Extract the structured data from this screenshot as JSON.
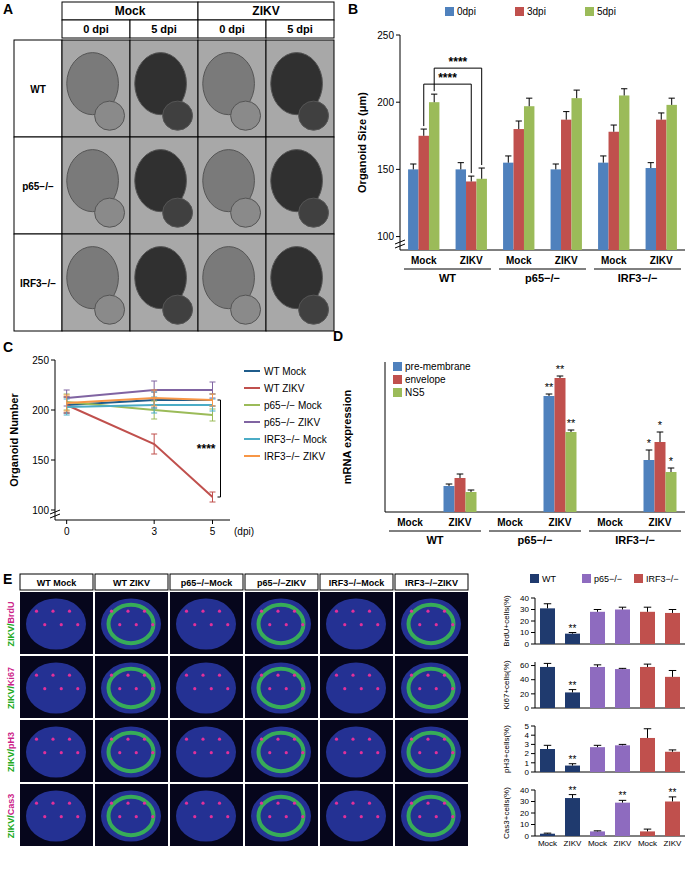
{
  "image_panels": [
    {
      "panel": "A",
      "column_groups": [
        "Mock",
        "ZIKV"
      ],
      "columns": [
        "0 dpi",
        "5 dpi",
        "0 dpi",
        "5 dpi"
      ],
      "rows": [
        "WT",
        "p65−/−",
        "IRF3−/−"
      ]
    },
    {
      "panel": "E",
      "columns": [
        "WT Mock",
        "WT ZIKV",
        "p65−/−Mock",
        "p65−/−ZIKV",
        "IRF3−/−Mock",
        "IRF3−/−ZIKV"
      ],
      "rows": [
        "ZIKV/BrdU",
        "ZIKV/Ki67",
        "ZIKV/pH3",
        "ZIKV/Cas3"
      ]
    }
  ],
  "chart_data": [
    {
      "panel": "B",
      "type": "bar",
      "y_label": "Organoid Size (μm)",
      "categories": [
        "Mock",
        "ZIKV",
        "Mock",
        "ZIKV",
        "Mock",
        "ZIKV"
      ],
      "group_labels": [
        "WT",
        "p65−/−",
        "IRF3−/−"
      ],
      "ylim": [
        90,
        250
      ],
      "yticks": [
        100,
        150,
        200,
        250
      ],
      "legend": "top",
      "series": [
        {
          "name": "0dpi",
          "color": "#4F81BD",
          "values": [
            150,
            150,
            155,
            150,
            155,
            151
          ],
          "errors": [
            4,
            5,
            5,
            4,
            5,
            4
          ]
        },
        {
          "name": "3dpi",
          "color": "#C0504D",
          "values": [
            175,
            141,
            180,
            187,
            178,
            187
          ],
          "errors": [
            5,
            4,
            6,
            6,
            5,
            5
          ]
        },
        {
          "name": "5dpi",
          "color": "#9BBB59",
          "values": [
            200,
            143,
            197,
            203,
            205,
            198
          ],
          "errors": [
            6,
            8,
            6,
            6,
            5,
            5
          ]
        }
      ],
      "comparisons": [
        {
          "text": "****",
          "series": 1,
          "between": [
            0,
            1
          ]
        },
        {
          "text": "****",
          "series": 2,
          "between": [
            0,
            1
          ]
        }
      ]
    },
    {
      "panel": "C",
      "type": "line",
      "y_label": "Organoid Number",
      "x_label": "(dpi)",
      "x": [
        0,
        3,
        5
      ],
      "xlim": [
        -0.4,
        5.6
      ],
      "xticks": [
        0,
        3,
        5
      ],
      "ylim": [
        90,
        250
      ],
      "yticks": [
        100,
        150,
        200,
        250
      ],
      "legend": "right",
      "series": [
        {
          "name": "WT Mock",
          "color": "#1F5C8B",
          "values": [
            205,
            210,
            210
          ],
          "errors": [
            8,
            8,
            6
          ]
        },
        {
          "name": "WT ZIKV",
          "color": "#C0504D",
          "values": [
            205,
            166,
            113
          ],
          "errors": [
            8,
            10,
            5
          ]
        },
        {
          "name": "p65−/− Mock",
          "color": "#9BBB59",
          "values": [
            208,
            200,
            195
          ],
          "errors": [
            8,
            9,
            6
          ]
        },
        {
          "name": "p65−/− ZIKV",
          "color": "#8064A2",
          "values": [
            212,
            220,
            220
          ],
          "errors": [
            8,
            9,
            8
          ]
        },
        {
          "name": "IRF3−/− Mock",
          "color": "#4BACC6",
          "values": [
            203,
            205,
            205
          ],
          "errors": [
            8,
            8,
            6
          ]
        },
        {
          "name": "IRF3−/− ZIKV",
          "color": "#F79646",
          "values": [
            207,
            212,
            210
          ],
          "errors": [
            8,
            8,
            6
          ]
        }
      ],
      "comparisons": [
        {
          "text": "****",
          "series": [
            0,
            1
          ],
          "at": 2
        }
      ]
    },
    {
      "panel": "D",
      "type": "bar",
      "y_label": "mRNA expression",
      "categories": [
        "Mock",
        "ZIKV",
        "Mock",
        "ZIKV",
        "Mock",
        "ZIKV"
      ],
      "group_labels": [
        "WT",
        "p65−/−",
        "IRF3−/−"
      ],
      "ylim": [
        0,
        75
      ],
      "tick_labels": "x",
      "legend": "top-left",
      "series": [
        {
          "name": "pre-membrane",
          "color": "#4F81BD",
          "values": [
            0,
            13,
            0,
            58,
            0,
            26
          ],
          "errors": [
            0,
            1,
            0,
            1,
            0,
            5
          ],
          "significance": [
            null,
            null,
            null,
            "**",
            null,
            "*"
          ]
        },
        {
          "name": "envelope",
          "color": "#C0504D",
          "values": [
            0,
            17,
            0,
            67,
            0,
            35
          ],
          "errors": [
            0,
            2,
            0,
            1,
            0,
            5
          ],
          "significance": [
            null,
            null,
            null,
            "**",
            null,
            "*"
          ]
        },
        {
          "name": "NS5",
          "color": "#9BBB59",
          "values": [
            0,
            10,
            0,
            40,
            0,
            20
          ],
          "errors": [
            0,
            1,
            0,
            1,
            0,
            2
          ],
          "significance": [
            null,
            null,
            null,
            "**",
            null,
            "*"
          ]
        }
      ]
    },
    {
      "type": "bar",
      "y_label": "BrdU+cells(%)",
      "categories": [
        "Mock",
        "ZIKV"
      ],
      "ylim": [
        0,
        40
      ],
      "yticks": [
        0,
        10,
        20,
        30,
        40
      ],
      "tick_labels": "y",
      "legend": "top",
      "series": [
        {
          "name": "WT",
          "color": "#1F3A6E",
          "values": [
            31,
            9
          ],
          "errors": [
            4,
            1
          ],
          "significance": [
            null,
            "**"
          ]
        },
        {
          "name": "p65−/−",
          "color": "#8E6BBF",
          "values": [
            28,
            30
          ],
          "errors": [
            2,
            2
          ]
        },
        {
          "name": "IRF3−/−",
          "color": "#C0504D",
          "values": [
            28,
            27
          ],
          "errors": [
            4,
            3
          ]
        }
      ]
    },
    {
      "type": "bar",
      "y_label": "Ki67+cells(%)",
      "categories": [
        "Mock",
        "ZIKV"
      ],
      "ylim": [
        0,
        65
      ],
      "yticks": [
        0,
        20,
        40,
        60
      ],
      "tick_labels": "y",
      "series": [
        {
          "color": "#1F3A6E",
          "values": [
            58,
            22
          ],
          "errors": [
            5,
            4
          ],
          "significance": [
            null,
            "**"
          ]
        },
        {
          "color": "#8E6BBF",
          "values": [
            58,
            55
          ],
          "errors": [
            3,
            1
          ]
        },
        {
          "color": "#C0504D",
          "values": [
            58,
            44
          ],
          "errors": [
            4,
            9
          ]
        }
      ]
    },
    {
      "type": "bar",
      "y_label": "pH3+cells(%)",
      "categories": [
        "Mock",
        "ZIKV"
      ],
      "ylim": [
        0,
        5
      ],
      "yticks": [
        0,
        1,
        2,
        3,
        4,
        5
      ],
      "tick_labels": "y",
      "series": [
        {
          "color": "#1F3A6E",
          "values": [
            2.5,
            0.7
          ],
          "errors": [
            0.4,
            0.2
          ],
          "significance": [
            null,
            "**"
          ]
        },
        {
          "color": "#8E6BBF",
          "values": [
            2.7,
            2.9
          ],
          "errors": [
            0.2,
            0.1
          ]
        },
        {
          "color": "#C0504D",
          "values": [
            3.7,
            2.2
          ],
          "errors": [
            1,
            0.2
          ]
        }
      ]
    },
    {
      "type": "bar",
      "y_label": "Cas3+cells(%)",
      "categories": [
        "Mock",
        "ZIKV"
      ],
      "ylim": [
        0,
        40
      ],
      "yticks": [
        0,
        10,
        20,
        30,
        40
      ],
      "series": [
        {
          "color": "#1F3A6E",
          "values": [
            2,
            33
          ],
          "errors": [
            0.5,
            3
          ],
          "significance": [
            null,
            "**"
          ]
        },
        {
          "color": "#8E6BBF",
          "values": [
            4,
            29
          ],
          "errors": [
            0.5,
            2
          ],
          "significance": [
            null,
            "**"
          ]
        },
        {
          "color": "#C0504D",
          "values": [
            4,
            30
          ],
          "errors": [
            2,
            4
          ],
          "significance": [
            null,
            "**"
          ]
        }
      ]
    }
  ]
}
